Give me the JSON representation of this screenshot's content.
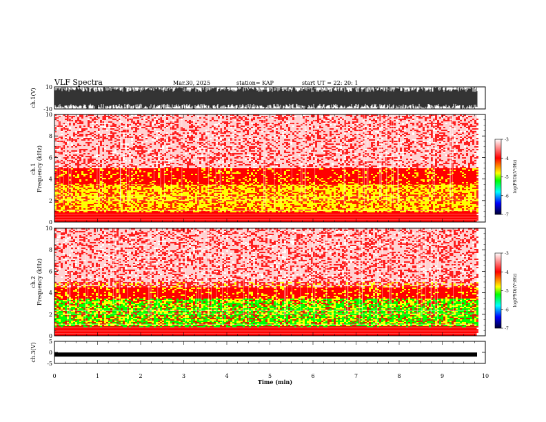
{
  "header": {
    "title": "VLF Spectra",
    "date": "Mar.30, 2025",
    "station": "station= KAP",
    "start": "start  UT  =   22: 20: 1"
  },
  "chart_data": [
    {
      "type": "line",
      "title": "",
      "ylabel": "ch.1(V)",
      "ylim": [
        -10,
        10
      ],
      "tick_labels_y": [
        "10",
        "-10"
      ],
      "description_values": {
        "amplitude_envelope": [
          -10,
          10
        ]
      }
    },
    {
      "type": "heatmap",
      "ylabel": "ch.1\nFrequency  (kHz)",
      "ylabel_lines": [
        "ch.1",
        "Frequency  (kHz)"
      ],
      "ylim": [
        0,
        10
      ],
      "y_ticks": [
        0,
        2,
        4,
        6,
        8,
        10
      ],
      "x_range_min": [
        0,
        9.8
      ],
      "colorbar": {
        "label": "log(PSD)(V²/Hz)",
        "range": [
          -7,
          -3
        ],
        "ticks": [
          -3,
          -4,
          -5,
          -6,
          -7
        ]
      },
      "bands": [
        {
          "freq_khz": [
            0,
            1.0
          ],
          "level": -4.2
        },
        {
          "freq_khz": [
            1.0,
            3.5
          ],
          "level": -4.7
        },
        {
          "freq_khz": [
            3.5,
            5.0
          ],
          "level": -4.0
        },
        {
          "freq_khz": [
            5.0,
            10
          ],
          "level": -3.2
        }
      ]
    },
    {
      "type": "heatmap",
      "ylabel_lines": [
        "ch.2",
        "Frequency  (kHz)"
      ],
      "ylim": [
        0,
        10
      ],
      "y_ticks": [
        0,
        2,
        4,
        6,
        8,
        10
      ],
      "x_range_min": [
        0,
        9.8
      ],
      "colorbar": {
        "label": "log(PSD)(V²/Hz)",
        "range": [
          -7,
          -3
        ],
        "ticks": [
          -3,
          -4,
          -5,
          -6,
          -7
        ]
      },
      "bands": [
        {
          "freq_khz": [
            0,
            0.8
          ],
          "level": -4.3
        },
        {
          "freq_khz": [
            0.8,
            3.0
          ],
          "level": -5.1
        },
        {
          "freq_khz": [
            3.0,
            4.5
          ],
          "level": -4.1
        },
        {
          "freq_khz": [
            4.5,
            10
          ],
          "level": -3.2
        }
      ]
    },
    {
      "type": "line",
      "ylabel": "ch.3(V)",
      "ylim": [
        -5,
        5
      ],
      "y_ticks": [
        -5,
        0,
        5
      ],
      "values_level": -1
    }
  ],
  "x_axis": {
    "label": "Time  (min)",
    "range": [
      0,
      10
    ],
    "ticks": [
      0,
      1,
      2,
      3,
      4,
      5,
      6,
      7,
      8,
      9,
      10
    ]
  },
  "colors": {
    "cb_top": "#ffffff",
    "cb_red": "#ff0000",
    "cb_yellow": "#ffff00",
    "cb_green": "#00ff00",
    "cb_cyan": "#00ffff",
    "cb_blue": "#0000ff",
    "cb_dark": "#000040"
  }
}
